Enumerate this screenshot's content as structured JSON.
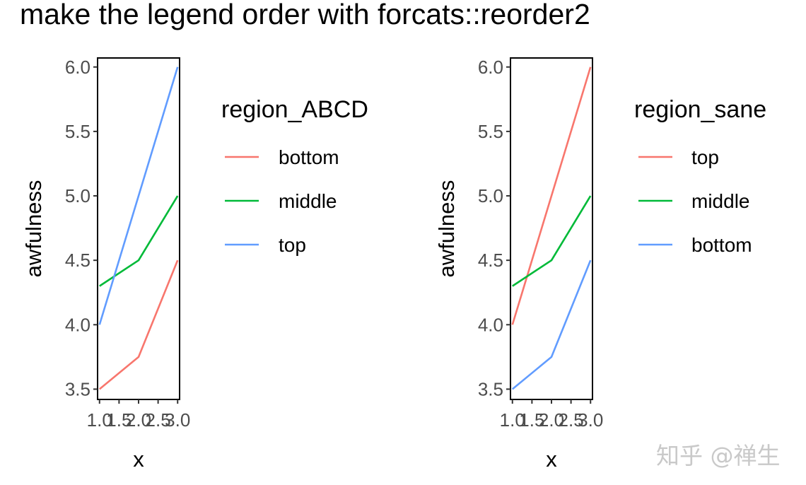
{
  "title": "make the legend order with forcats::reorder2",
  "watermark": "知乎 @禅生",
  "chart_data": [
    {
      "type": "line",
      "x": [
        1.0,
        1.5,
        2.0,
        2.5,
        3.0
      ],
      "x_tick_labels": [
        "1.0",
        "1.5",
        "2.0",
        "2.5",
        "3.0"
      ],
      "y_ticks": [
        3.5,
        4.0,
        4.5,
        5.0,
        5.5,
        6.0
      ],
      "y_tick_labels": [
        "3.5",
        "4.0",
        "4.5",
        "5.0",
        "5.5",
        "6.0"
      ],
      "xlabel": "x",
      "ylabel": "awfulness",
      "xlim": [
        0.95,
        3.05
      ],
      "ylim": [
        3.42,
        6.07
      ],
      "grid": false,
      "legend_title": "region_ABCD",
      "legend_placement": "right",
      "series": [
        {
          "name": "bottom",
          "color": "#F8766D",
          "x": [
            1,
            2,
            3
          ],
          "values": [
            3.5,
            3.75,
            4.5
          ]
        },
        {
          "name": "middle",
          "color": "#00BA38",
          "x": [
            1,
            2,
            3
          ],
          "values": [
            4.3,
            4.5,
            5.0
          ]
        },
        {
          "name": "top",
          "color": "#619CFF",
          "x": [
            1,
            2,
            3
          ],
          "values": [
            4.0,
            5.0,
            6.0
          ]
        }
      ]
    },
    {
      "type": "line",
      "x": [
        1.0,
        1.5,
        2.0,
        2.5,
        3.0
      ],
      "x_tick_labels": [
        "1.0",
        "1.5",
        "2.0",
        "2.5",
        "3.0"
      ],
      "y_ticks": [
        3.5,
        4.0,
        4.5,
        5.0,
        5.5,
        6.0
      ],
      "y_tick_labels": [
        "3.5",
        "4.0",
        "4.5",
        "5.0",
        "5.5",
        "6.0"
      ],
      "xlabel": "x",
      "ylabel": "awfulness",
      "xlim": [
        0.95,
        3.05
      ],
      "ylim": [
        3.42,
        6.07
      ],
      "grid": false,
      "legend_title": "region_sane",
      "legend_placement": "right",
      "series": [
        {
          "name": "top",
          "color": "#F8766D",
          "x": [
            1,
            2,
            3
          ],
          "values": [
            4.0,
            5.0,
            6.0
          ]
        },
        {
          "name": "middle",
          "color": "#00BA38",
          "x": [
            1,
            2,
            3
          ],
          "values": [
            4.3,
            4.5,
            5.0
          ]
        },
        {
          "name": "bottom",
          "color": "#619CFF",
          "x": [
            1,
            2,
            3
          ],
          "values": [
            3.5,
            3.75,
            4.5
          ]
        }
      ]
    }
  ]
}
